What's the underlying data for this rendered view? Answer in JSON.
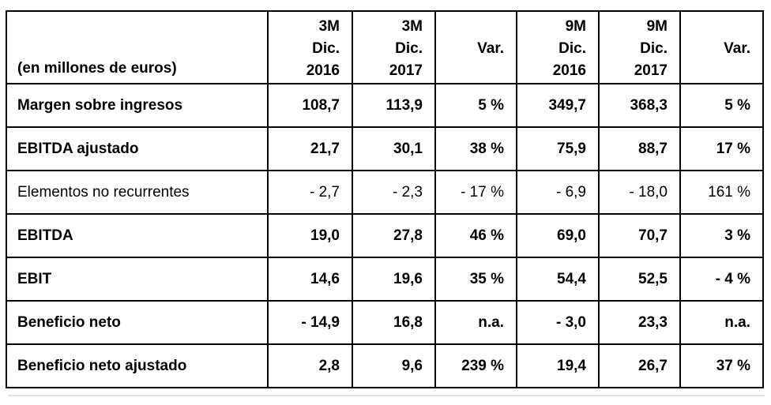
{
  "colors": {
    "text": "#000000",
    "border": "#000000",
    "background": "#ffffff"
  },
  "table": {
    "unit_label": "(en millones de euros)",
    "columns": [
      {
        "lines": [
          "3M",
          "Dic.",
          "2016"
        ]
      },
      {
        "lines": [
          "3M",
          "Dic.",
          "2017"
        ]
      },
      {
        "lines": [
          "",
          "Var.",
          ""
        ]
      },
      {
        "lines": [
          "9M",
          "Dic.",
          "2016"
        ]
      },
      {
        "lines": [
          "9M",
          "Dic.",
          "2017"
        ]
      },
      {
        "lines": [
          "",
          "Var.",
          ""
        ]
      }
    ],
    "rows": [
      {
        "label": "Margen sobre ingresos",
        "emphasis": "bold",
        "values": [
          "108,7",
          "113,9",
          "5 %",
          "349,7",
          "368,3",
          "5 %"
        ]
      },
      {
        "label": "EBITDA ajustado",
        "emphasis": "bold",
        "values": [
          "21,7",
          "30,1",
          "38 %",
          "75,9",
          "88,7",
          "17 %"
        ]
      },
      {
        "label": "Elementos no recurrentes",
        "emphasis": "regular",
        "values": [
          "- 2,7",
          "- 2,3",
          "- 17 %",
          "- 6,9",
          "- 18,0",
          "161 %"
        ]
      },
      {
        "label": "EBITDA",
        "emphasis": "bold",
        "values": [
          "19,0",
          "27,8",
          "46 %",
          "69,0",
          "70,7",
          "3 %"
        ]
      },
      {
        "label": "EBIT",
        "emphasis": "bold",
        "values": [
          "14,6",
          "19,6",
          "35 %",
          "54,4",
          "52,5",
          "- 4 %"
        ]
      },
      {
        "label": "Beneficio neto",
        "emphasis": "bold",
        "values": [
          "- 14,9",
          "16,8",
          "n.a.",
          "- 3,0",
          "23,3",
          "n.a."
        ]
      },
      {
        "label": "Beneficio neto ajustado",
        "emphasis": "bold",
        "values": [
          "2,8",
          "9,6",
          "239 %",
          "19,4",
          "26,7",
          "37 %"
        ]
      }
    ]
  }
}
